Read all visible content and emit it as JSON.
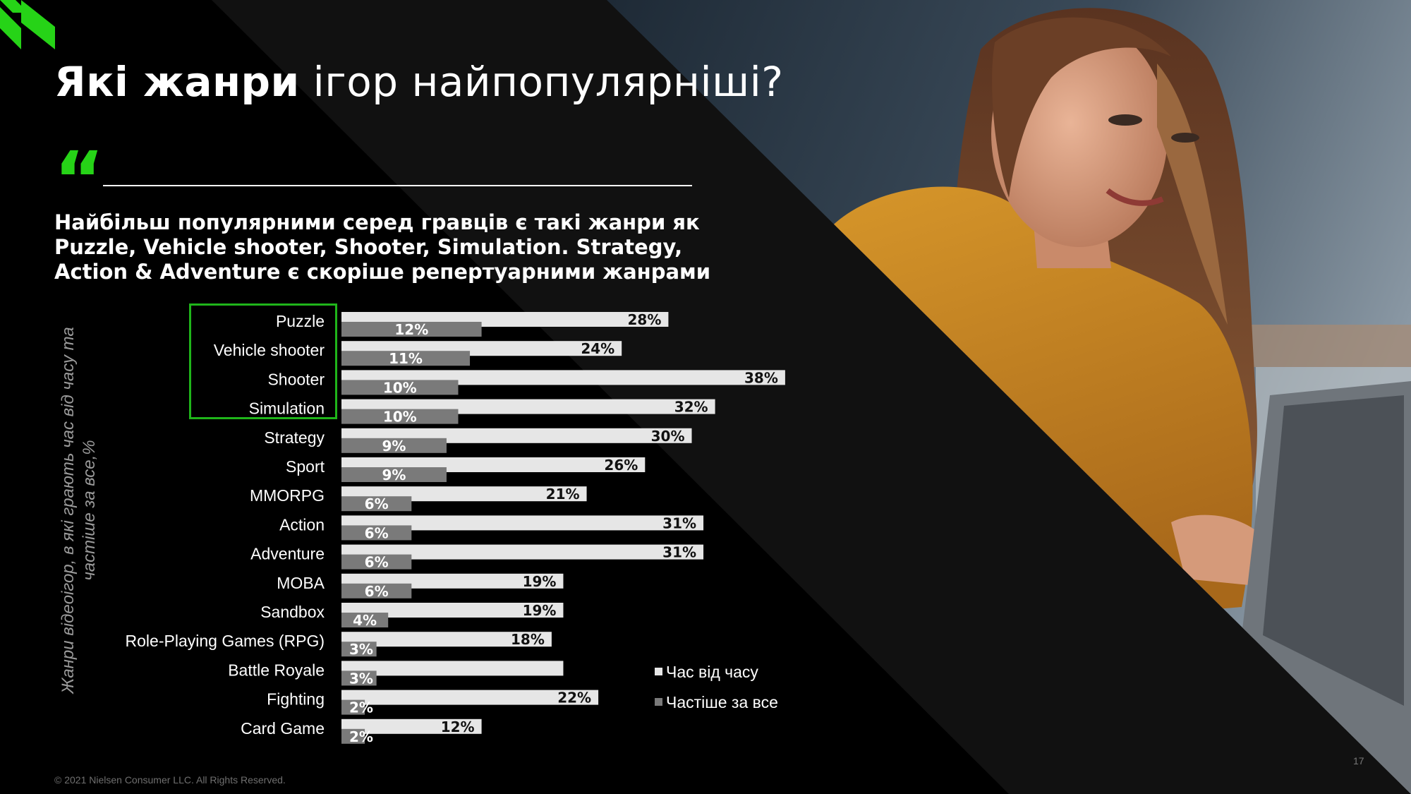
{
  "title": {
    "bold": "Які жанри",
    "regular": " ігор найпопулярніші?"
  },
  "headline": [
    "Найбільш популярними серед гравців є такі жанри як",
    "Puzzle, Vehicle shooter, Shooter, Simulation. Strategy,",
    "Action & Adventure є скоріше репертуарними жанрами"
  ],
  "y_axis_label": "Жанри відеоігор, в які грають час від часу та частіше за все,%",
  "footer": "© 2021 Nielsen Consumer LLC. All Rights Reserved.",
  "page_number": "17",
  "colors": {
    "accent": "#26d317",
    "series_1": "#e6e6e6",
    "series_2": "#7a7a7a"
  },
  "chart_data": {
    "type": "bar",
    "orientation": "horizontal",
    "categories": [
      "Puzzle",
      "Vehicle shooter",
      "Shooter",
      "Simulation",
      "Strategy",
      "Sport",
      "MMORPG",
      "Action",
      "Adventure",
      "MOBA",
      "Sandbox",
      "Role-Playing Games (RPG)",
      "Battle Royale",
      "Fighting",
      "Card Game"
    ],
    "series": [
      {
        "name": "Час від часу",
        "values": [
          28,
          24,
          38,
          32,
          30,
          26,
          21,
          31,
          31,
          19,
          19,
          18,
          19,
          22,
          12
        ],
        "labels": [
          "28%",
          "24%",
          "38%",
          "32%",
          "30%",
          "26%",
          "21%",
          "31%",
          "31%",
          "19%",
          "19%",
          "18%",
          "",
          "22%",
          "12%"
        ]
      },
      {
        "name": "Частіше за все",
        "values": [
          12,
          11,
          10,
          10,
          9,
          9,
          6,
          6,
          6,
          6,
          4,
          3,
          3,
          2,
          2
        ],
        "labels": [
          "12%",
          "11%",
          "10%",
          "10%",
          "9%",
          "9%",
          "6%",
          "6%",
          "6%",
          "6%",
          "4%",
          "3%",
          "3%",
          "2%",
          "2%"
        ]
      }
    ],
    "highlighted_categories": [
      "Puzzle",
      "Vehicle shooter",
      "Shooter",
      "Simulation"
    ],
    "xlim": [
      0,
      40
    ],
    "legend_position": "bottom-right",
    "grid": false
  }
}
